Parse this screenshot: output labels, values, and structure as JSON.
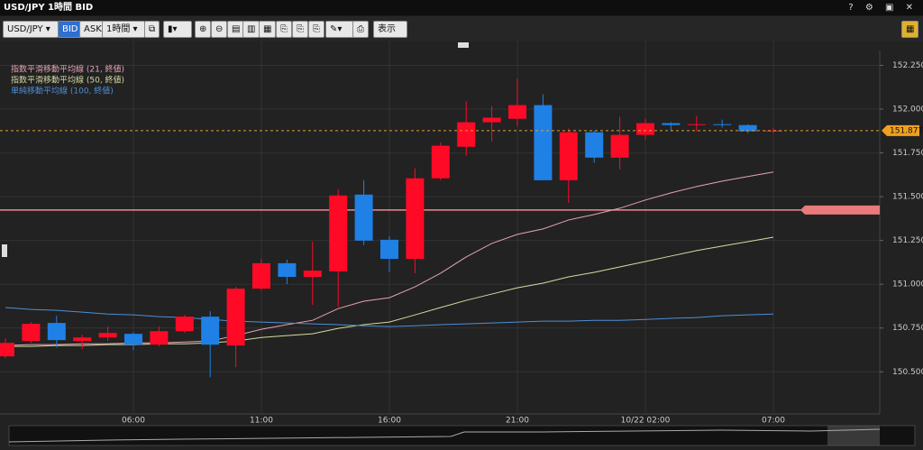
{
  "window_title": "USD/JPY 1時間 BID",
  "toolbar": {
    "symbol": "USD/JPY",
    "bid": "BID",
    "ask": "ASK",
    "interval": "1時間",
    "display": "表示"
  },
  "chart_data": {
    "type": "candlestick",
    "categories": [
      null,
      null,
      null,
      null,
      null,
      "06:00",
      null,
      null,
      null,
      null,
      "11:00",
      null,
      null,
      null,
      null,
      "16:00",
      null,
      null,
      null,
      null,
      "21:00",
      null,
      null,
      null,
      null,
      "10/22 02:00",
      null,
      null,
      null,
      null,
      "07:00"
    ],
    "open": [
      150.588,
      150.676,
      150.779,
      150.676,
      150.696,
      150.717,
      150.655,
      150.732,
      150.815,
      150.65,
      150.975,
      151.12,
      151.042,
      151.073,
      151.512,
      151.254,
      151.145,
      151.605,
      151.785,
      151.925,
      151.945,
      152.023,
      151.594,
      151.868,
      151.723,
      151.853,
      151.92,
      151.909,
      151.914,
      151.909,
      151.873
    ],
    "high": [
      150.691,
      150.784,
      150.82,
      150.712,
      150.758,
      150.727,
      150.758,
      150.825,
      150.846,
      150.985,
      151.145,
      151.14,
      151.243,
      151.543,
      151.594,
      151.274,
      151.662,
      151.811,
      152.044,
      152.018,
      152.173,
      152.085,
      151.889,
      151.878,
      151.956,
      151.945,
      151.925,
      151.961,
      151.94,
      151.914,
      151.894
    ],
    "low": [
      150.578,
      150.665,
      150.639,
      150.629,
      150.676,
      150.624,
      150.645,
      150.722,
      150.469,
      150.526,
      150.965,
      151.001,
      150.882,
      150.872,
      151.223,
      151.068,
      151.063,
      151.594,
      151.734,
      151.816,
      151.904,
      151.594,
      151.465,
      151.693,
      151.656,
      151.827,
      151.873,
      151.873,
      151.894,
      151.863,
      151.863
    ],
    "close": [
      150.665,
      150.774,
      150.681,
      150.696,
      150.722,
      150.655,
      150.732,
      150.815,
      150.655,
      150.975,
      151.12,
      151.042,
      151.078,
      151.507,
      151.249,
      151.145,
      151.605,
      151.791,
      151.925,
      151.951,
      152.023,
      151.594,
      151.868,
      151.723,
      151.853,
      151.92,
      151.909,
      151.914,
      151.909,
      151.873,
      151.877
    ],
    "up_color": "#ff0a26",
    "down_color": "#1f80e6",
    "series": [
      {
        "name": "指数平滑移動平均線 (21, 終値)",
        "color": "#e6a3b3",
        "values": [
          150.65,
          150.655,
          150.655,
          150.66,
          150.66,
          150.665,
          150.665,
          150.67,
          150.676,
          150.707,
          150.743,
          150.769,
          150.794,
          150.861,
          150.903,
          150.923,
          150.985,
          151.063,
          151.156,
          151.233,
          151.285,
          151.316,
          151.367,
          151.398,
          151.434,
          151.481,
          151.522,
          151.558,
          151.589,
          151.615,
          151.641
        ]
      },
      {
        "name": "指数平滑移動平均線 (50, 終値)",
        "color": "#d6dba3",
        "values": [
          150.645,
          150.645,
          150.65,
          150.65,
          150.655,
          150.655,
          150.66,
          150.66,
          150.665,
          150.676,
          150.696,
          150.707,
          150.717,
          150.748,
          150.769,
          150.784,
          150.825,
          150.867,
          150.908,
          150.944,
          150.98,
          151.006,
          151.042,
          151.068,
          151.099,
          151.13,
          151.161,
          151.192,
          151.218,
          151.243,
          151.269
        ]
      },
      {
        "name": "単純移動平均線 (100, 終値)",
        "color": "#4d8fd6",
        "values": [
          150.867,
          150.856,
          150.851,
          150.841,
          150.83,
          150.825,
          150.815,
          150.81,
          150.799,
          150.789,
          150.784,
          150.779,
          150.774,
          150.769,
          150.763,
          150.758,
          150.763,
          150.769,
          150.774,
          150.779,
          150.784,
          150.789,
          150.789,
          150.794,
          150.794,
          150.799,
          150.805,
          150.81,
          150.82,
          150.825,
          150.83
        ]
      }
    ],
    "last_price": 151.877,
    "order_line": 151.424,
    "ylim": [
      150.28,
      152.34
    ],
    "yticks": [
      {
        "value": 150.5,
        "label": "150.500"
      },
      {
        "value": 150.75,
        "label": "150.750"
      },
      {
        "value": 151,
        "label": "151.000"
      },
      {
        "value": 151.25,
        "label": "151.250"
      },
      {
        "value": 151.5,
        "label": "151.500"
      },
      {
        "value": 151.75,
        "label": "151.750"
      },
      {
        "value": 152,
        "label": "152.000"
      },
      {
        "value": 152.25,
        "label": "152.250"
      }
    ],
    "grid": true
  }
}
